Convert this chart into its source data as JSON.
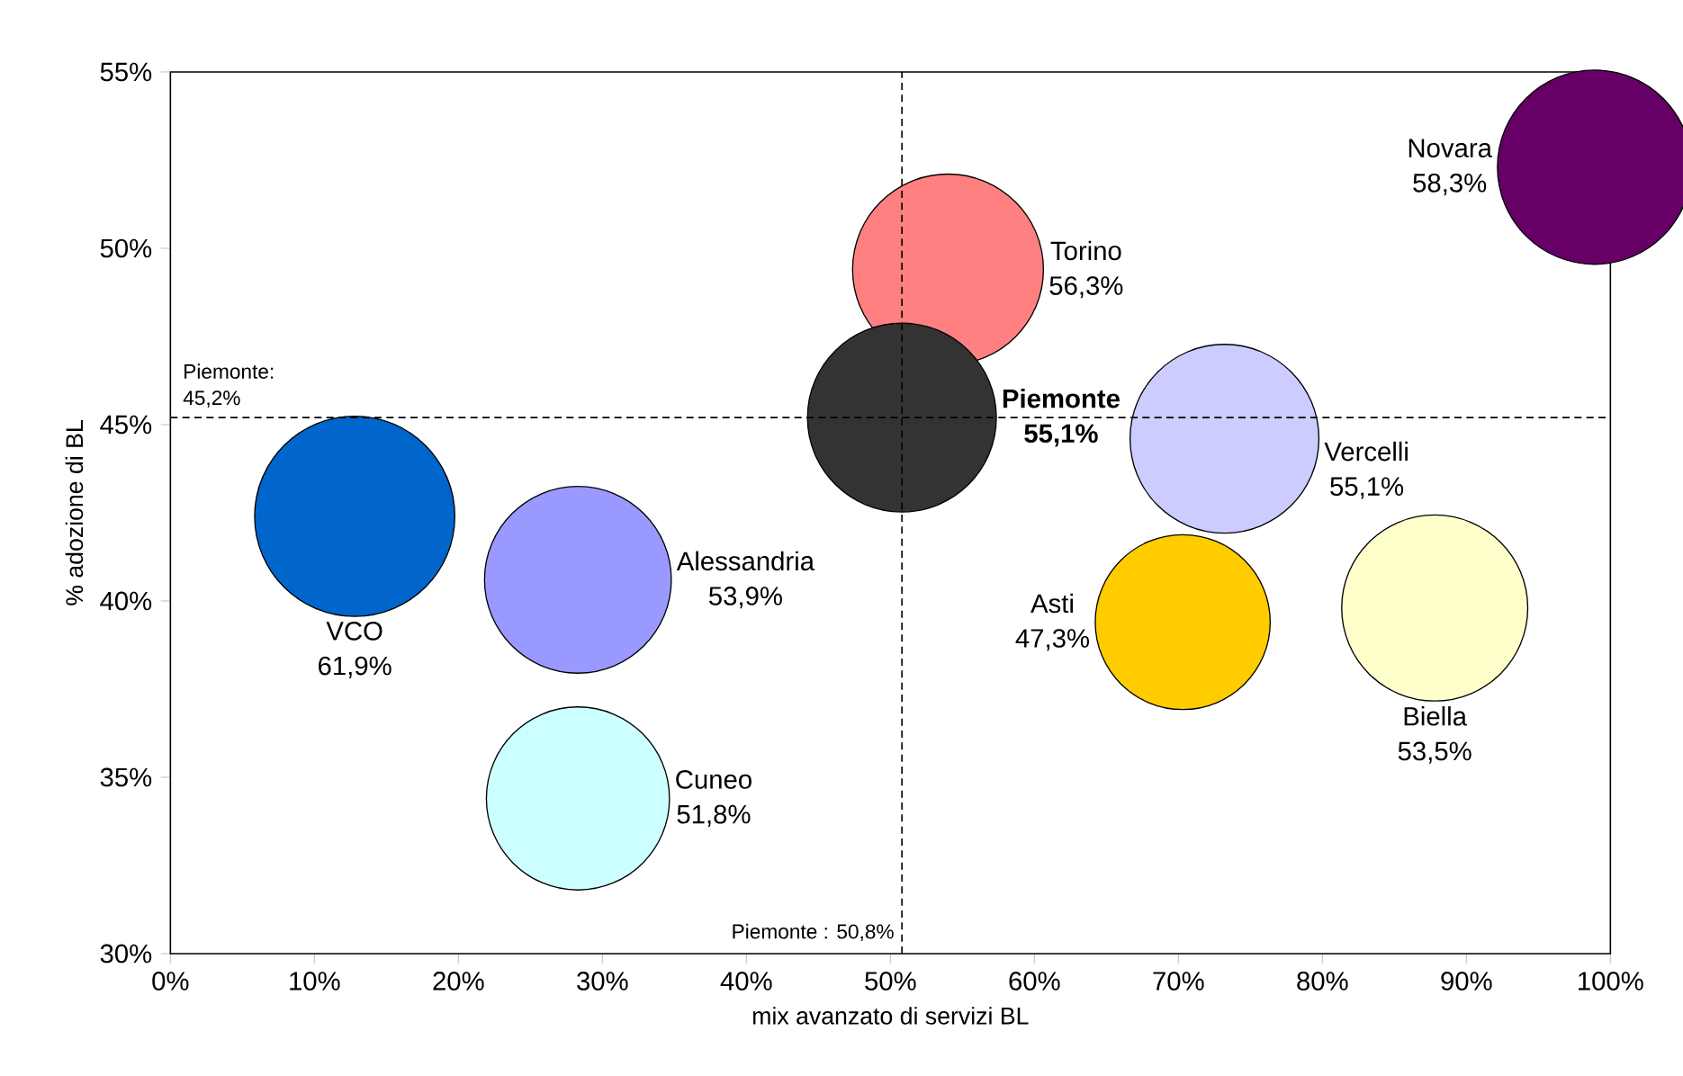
{
  "chart_data": {
    "type": "bubble",
    "xlabel": "mix avanzato di servizi BL",
    "ylabel": "% adozione di BL",
    "series": [
      {
        "name": "VCO",
        "color": "#0066cc",
        "x": [
          12.8
        ],
        "values": [
          42.4
        ],
        "sizes": [
          61.9
        ],
        "value_labels": [
          "61,9%"
        ]
      },
      {
        "name": "Alessandria",
        "color": "#9999ff",
        "x": [
          28.3
        ],
        "values": [
          40.6
        ],
        "sizes": [
          53.9
        ],
        "value_labels": [
          "53,9%"
        ]
      },
      {
        "name": "Cuneo",
        "color": "#ccffff",
        "x": [
          28.3
        ],
        "values": [
          34.4
        ],
        "sizes": [
          51.8
        ],
        "value_labels": [
          "51,8%"
        ]
      },
      {
        "name": "Torino",
        "color": "#ff8080",
        "x": [
          54.0
        ],
        "values": [
          49.4
        ],
        "sizes": [
          56.3
        ],
        "value_labels": [
          "56,3%"
        ]
      },
      {
        "name": "Piemonte",
        "color": "#333333",
        "x": [
          50.8
        ],
        "values": [
          45.2
        ],
        "sizes": [
          55.1
        ],
        "value_labels": [
          "55,1%"
        ]
      },
      {
        "name": "Vercelli",
        "color": "#ccccff",
        "x": [
          73.2
        ],
        "values": [
          44.6
        ],
        "sizes": [
          55.1
        ],
        "value_labels": [
          "55,1%"
        ]
      },
      {
        "name": "Novara",
        "color": "#660066",
        "x": [
          98.9
        ],
        "values": [
          52.3
        ],
        "sizes": [
          58.3
        ],
        "value_labels": [
          "58,3%"
        ]
      },
      {
        "name": "Asti",
        "color": "#ffcc00",
        "x": [
          70.3
        ],
        "values": [
          39.4
        ],
        "sizes": [
          47.3
        ],
        "value_labels": [
          "47,3%"
        ]
      },
      {
        "name": "Biella",
        "color": "#ffffcc",
        "x": [
          87.8
        ],
        "values": [
          39.8
        ],
        "sizes": [
          53.5
        ],
        "value_labels": [
          "53,5%"
        ]
      }
    ],
    "xlim": [
      0,
      100
    ],
    "ylim": [
      30,
      55
    ],
    "xticks": [
      {
        "value": 0,
        "label": "0%"
      },
      {
        "value": 10,
        "label": "10%"
      },
      {
        "value": 20,
        "label": "20%"
      },
      {
        "value": 30,
        "label": "30%"
      },
      {
        "value": 40,
        "label": "40%"
      },
      {
        "value": 50,
        "label": "50%"
      },
      {
        "value": 60,
        "label": "60%"
      },
      {
        "value": 70,
        "label": "70%"
      },
      {
        "value": 80,
        "label": "80%"
      },
      {
        "value": 90,
        "label": "90%"
      },
      {
        "value": 100,
        "label": "100%"
      }
    ],
    "yticks": [
      {
        "value": 30,
        "label": "30%"
      },
      {
        "value": 35,
        "label": "35%"
      },
      {
        "value": 40,
        "label": "40%"
      },
      {
        "value": 45,
        "label": "45%"
      },
      {
        "value": 50,
        "label": "50%"
      },
      {
        "value": 55,
        "label": "55%"
      }
    ],
    "ref_lines": [
      {
        "axis": "x",
        "value": 50.8,
        "label": "Piemonte : 50,8%",
        "line_style": "dashed"
      },
      {
        "axis": "y",
        "value": 45.2,
        "label": "Piemonte: 45,2%",
        "line_style": "dashed"
      }
    ]
  }
}
